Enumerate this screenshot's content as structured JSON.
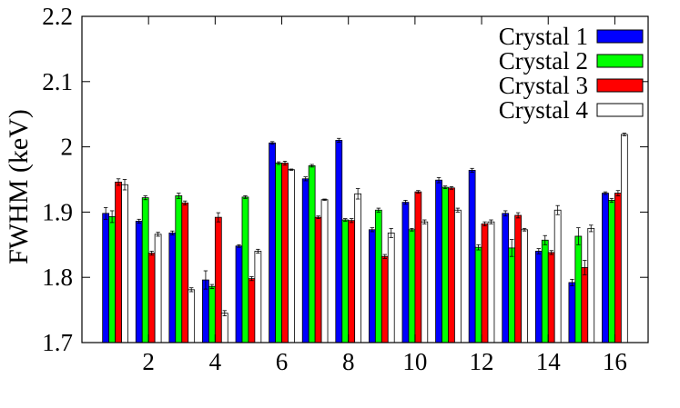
{
  "chart_data": {
    "type": "bar",
    "ylabel": "FWHM (keV)",
    "xlabel": "",
    "ylim": [
      1.7,
      2.2
    ],
    "yticks": [
      1.7,
      1.8,
      1.9,
      2,
      2.1,
      2.2
    ],
    "ytick_labels": [
      "1.7",
      "1.8",
      "1.9",
      "2",
      "2.1",
      "2.2"
    ],
    "xlim": [
      0,
      17
    ],
    "xticks": [
      2,
      4,
      6,
      8,
      10,
      12,
      14,
      16
    ],
    "xtick_labels": [
      "2",
      "4",
      "6",
      "8",
      "10",
      "12",
      "14",
      "16"
    ],
    "categories": [
      1,
      2,
      3,
      4,
      5,
      6,
      7,
      8,
      9,
      10,
      11,
      12,
      13,
      14,
      15,
      16
    ],
    "legend_position": "top-right",
    "grid": false,
    "series": [
      {
        "name": "Crystal 1",
        "color": "#0000ff",
        "values": [
          1.898,
          1.886,
          1.868,
          1.796,
          1.848,
          2.006,
          1.951,
          2.01,
          1.873,
          1.915,
          1.949,
          1.964,
          1.898,
          1.84,
          1.792,
          1.929
        ],
        "errors": [
          0.009,
          0.003,
          0.003,
          0.014,
          0.002,
          0.002,
          0.003,
          0.003,
          0.003,
          0.003,
          0.004,
          0.003,
          0.004,
          0.004,
          0.005,
          0.002
        ]
      },
      {
        "name": "Crystal 2",
        "color": "#00ff00",
        "values": [
          1.893,
          1.922,
          1.925,
          1.786,
          1.923,
          1.975,
          1.971,
          1.888,
          1.903,
          1.873,
          1.938,
          1.846,
          1.845,
          1.857,
          1.863,
          1.918
        ],
        "errors": [
          0.009,
          0.003,
          0.004,
          0.003,
          0.002,
          0.002,
          0.002,
          0.002,
          0.003,
          0.002,
          0.002,
          0.004,
          0.013,
          0.007,
          0.013,
          0.003
        ]
      },
      {
        "name": "Crystal 3",
        "color": "#ff0000",
        "values": [
          1.946,
          1.837,
          1.914,
          1.892,
          1.798,
          1.975,
          1.892,
          1.887,
          1.832,
          1.931,
          1.937,
          1.882,
          1.895,
          1.838,
          1.815,
          1.929
        ],
        "errors": [
          0.005,
          0.003,
          0.003,
          0.007,
          0.003,
          0.003,
          0.002,
          0.003,
          0.003,
          0.002,
          0.002,
          0.003,
          0.004,
          0.003,
          0.011,
          0.004
        ]
      },
      {
        "name": "Crystal 4",
        "color": "#ffffff",
        "values": [
          1.942,
          1.866,
          1.781,
          1.745,
          1.84,
          1.965,
          1.919,
          1.928,
          1.868,
          1.885,
          1.903,
          1.885,
          1.873,
          1.903,
          1.875,
          2.019
        ],
        "errors": [
          0.008,
          0.003,
          0.003,
          0.004,
          0.003,
          0.001,
          0.001,
          0.008,
          0.007,
          0.003,
          0.003,
          0.003,
          0.002,
          0.007,
          0.005,
          0.002
        ]
      }
    ]
  }
}
